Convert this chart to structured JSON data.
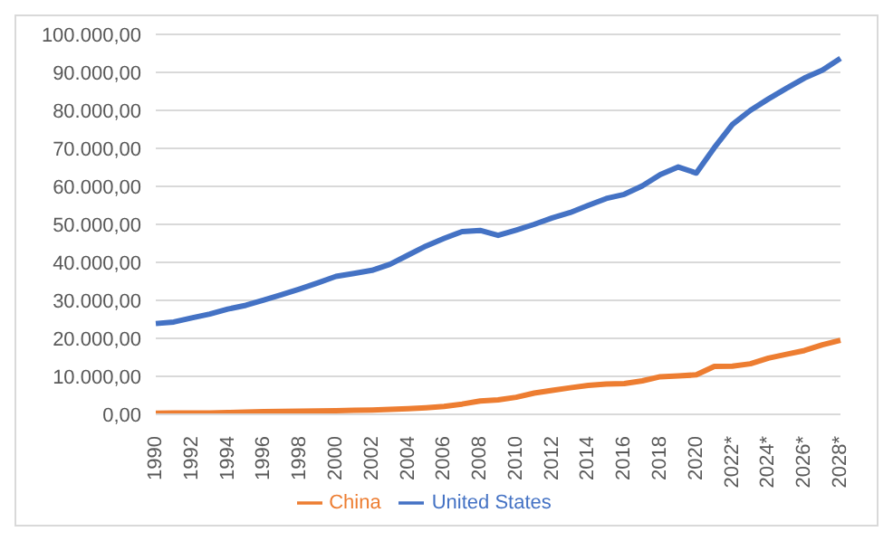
{
  "chart_data": {
    "type": "line",
    "categories": [
      "1990",
      null,
      "1992",
      null,
      "1994",
      null,
      "1996",
      null,
      "1998",
      null,
      "2000",
      null,
      "2002",
      null,
      "2004",
      null,
      "2006",
      null,
      "2008",
      null,
      "2010",
      null,
      "2012",
      null,
      "2014",
      null,
      "2016",
      null,
      "2018",
      null,
      "2020",
      null,
      "2022*",
      null,
      "2024*",
      null,
      "2026*",
      null,
      "2028*"
    ],
    "series": [
      {
        "name": "United States",
        "color": "#4472c4",
        "values": [
          23900,
          24300,
          25400,
          26400,
          27700,
          28700,
          30100,
          31500,
          33000,
          34600,
          36300,
          37100,
          37900,
          39500,
          41900,
          44300,
          46300,
          48100,
          48400,
          47100,
          48500,
          50000,
          51700,
          53100,
          55000,
          56800,
          57900,
          60100,
          63100,
          65100,
          63500,
          70200,
          76300,
          80000,
          83000,
          85800,
          88500,
          90600,
          93700
        ]
      },
      {
        "name": "China",
        "color": "#ed7d31",
        "values": [
          300,
          330,
          360,
          380,
          470,
          600,
          700,
          780,
          830,
          870,
          960,
          1050,
          1150,
          1300,
          1500,
          1750,
          2100,
          2700,
          3500,
          3800,
          4500,
          5600,
          6300,
          7000,
          7600,
          8000,
          8100,
          8800,
          9900,
          10100,
          10400,
          12600,
          12700,
          13300,
          14800,
          15800,
          16800,
          18300,
          19500
        ]
      }
    ],
    "ylim": [
      0,
      100000
    ],
    "yticks": [
      {
        "value": 0,
        "label": "0,00"
      },
      {
        "value": 10000,
        "label": "10.000,00"
      },
      {
        "value": 20000,
        "label": "20.000,00"
      },
      {
        "value": 30000,
        "label": "30.000,00"
      },
      {
        "value": 40000,
        "label": "40.000,00"
      },
      {
        "value": 50000,
        "label": "50.000,00"
      },
      {
        "value": 60000,
        "label": "60.000,00"
      },
      {
        "value": 70000,
        "label": "70.000,00"
      },
      {
        "value": 80000,
        "label": "80.000,00"
      },
      {
        "value": 90000,
        "label": "90.000,00"
      },
      {
        "value": 100000,
        "label": "100.000,00"
      }
    ],
    "grid": "y",
    "legend": "bottom",
    "marker": "none",
    "line_style": "solid"
  }
}
